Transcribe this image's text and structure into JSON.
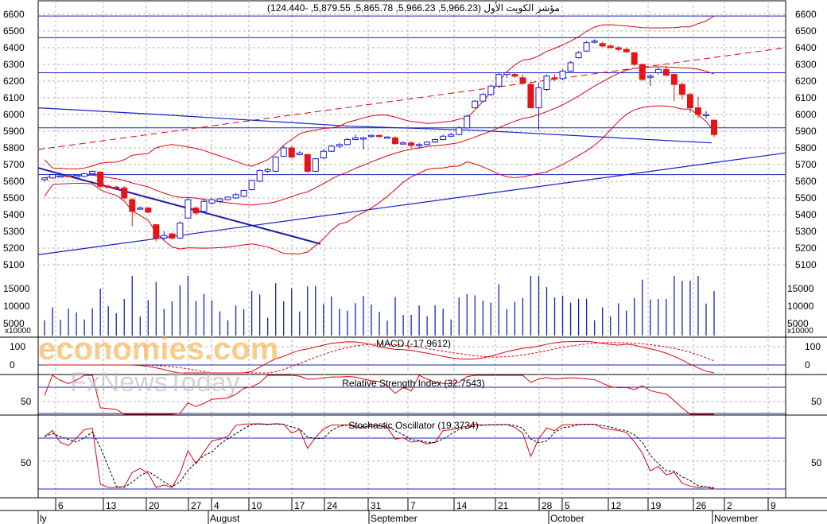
{
  "chart_data": [
    {
      "type": "candlestick",
      "title": "مؤشر الكويت الأول (5,966.23, 5,966.23, 5,865.78, 5,879.55, -124.440)",
      "ylim": [
        5100,
        6600
      ],
      "y_ticks": [
        "6600",
        "6500",
        "6400",
        "6300",
        "6200",
        "6100",
        "6000",
        "5900",
        "5800",
        "5700",
        "5600",
        "5500",
        "5400",
        "5300",
        "5200",
        "5100"
      ],
      "x_ticks": [
        "6",
        "13",
        "20",
        "27",
        "4",
        "10",
        "17",
        "24",
        "31",
        "7",
        "14",
        "21",
        "28",
        "5",
        "12",
        "19",
        "26",
        "2",
        "9"
      ],
      "months": [
        "ly",
        "August",
        "September",
        "October",
        "November"
      ],
      "horizontal_lines": [
        6590,
        6460,
        6250,
        5920,
        5640
      ],
      "candles": [
        {
          "o": 5610,
          "h": 5625,
          "l": 5600,
          "c": 5620
        },
        {
          "o": 5620,
          "h": 5645,
          "l": 5615,
          "c": 5640
        },
        {
          "o": 5630,
          "h": 5640,
          "l": 5625,
          "c": 5632
        },
        {
          "o": 5635,
          "h": 5640,
          "l": 5625,
          "c": 5630
        },
        {
          "o": 5625,
          "h": 5640,
          "l": 5615,
          "c": 5635
        },
        {
          "o": 5630,
          "h": 5650,
          "l": 5625,
          "c": 5645
        },
        {
          "o": 5645,
          "h": 5665,
          "l": 5640,
          "c": 5660
        },
        {
          "o": 5655,
          "h": 5660,
          "l": 5560,
          "c": 5570
        },
        {
          "o": 5570,
          "h": 5580,
          "l": 5560,
          "c": 5565
        },
        {
          "o": 5565,
          "h": 5575,
          "l": 5555,
          "c": 5560
        },
        {
          "o": 5560,
          "h": 5570,
          "l": 5490,
          "c": 5500
        },
        {
          "o": 5490,
          "h": 5500,
          "l": 5330,
          "c": 5420
        },
        {
          "o": 5440,
          "h": 5450,
          "l": 5430,
          "c": 5440
        },
        {
          "o": 5440,
          "h": 5445,
          "l": 5410,
          "c": 5415
        },
        {
          "o": 5340,
          "h": 5345,
          "l": 5240,
          "c": 5260
        },
        {
          "o": 5260,
          "h": 5300,
          "l": 5250,
          "c": 5275
        },
        {
          "o": 5285,
          "h": 5290,
          "l": 5250,
          "c": 5260
        },
        {
          "o": 5260,
          "h": 5360,
          "l": 5255,
          "c": 5350
        },
        {
          "o": 5380,
          "h": 5500,
          "l": 5375,
          "c": 5490
        },
        {
          "o": 5440,
          "h": 5450,
          "l": 5400,
          "c": 5410
        },
        {
          "o": 5420,
          "h": 5500,
          "l": 5410,
          "c": 5480
        },
        {
          "o": 5470,
          "h": 5500,
          "l": 5460,
          "c": 5490
        },
        {
          "o": 5480,
          "h": 5500,
          "l": 5470,
          "c": 5495
        },
        {
          "o": 5490,
          "h": 5510,
          "l": 5485,
          "c": 5505
        },
        {
          "o": 5500,
          "h": 5530,
          "l": 5495,
          "c": 5520
        },
        {
          "o": 5510,
          "h": 5550,
          "l": 5505,
          "c": 5545
        },
        {
          "o": 5550,
          "h": 5610,
          "l": 5545,
          "c": 5605
        },
        {
          "o": 5600,
          "h": 5670,
          "l": 5595,
          "c": 5665
        },
        {
          "o": 5660,
          "h": 5680,
          "l": 5650,
          "c": 5670
        },
        {
          "o": 5660,
          "h": 5750,
          "l": 5655,
          "c": 5745
        },
        {
          "o": 5750,
          "h": 5810,
          "l": 5745,
          "c": 5800
        },
        {
          "o": 5800,
          "h": 5810,
          "l": 5740,
          "c": 5745
        },
        {
          "o": 5760,
          "h": 5780,
          "l": 5755,
          "c": 5770
        },
        {
          "o": 5760,
          "h": 5765,
          "l": 5650,
          "c": 5660
        },
        {
          "o": 5660,
          "h": 5740,
          "l": 5655,
          "c": 5735
        },
        {
          "o": 5740,
          "h": 5790,
          "l": 5735,
          "c": 5780
        },
        {
          "o": 5780,
          "h": 5820,
          "l": 5775,
          "c": 5810
        },
        {
          "o": 5810,
          "h": 5830,
          "l": 5800,
          "c": 5820
        },
        {
          "o": 5820,
          "h": 5860,
          "l": 5815,
          "c": 5850
        },
        {
          "o": 5850,
          "h": 5880,
          "l": 5845,
          "c": 5860
        },
        {
          "o": 5860,
          "h": 5865,
          "l": 5790,
          "c": 5860
        },
        {
          "o": 5870,
          "h": 5880,
          "l": 5860,
          "c": 5875
        },
        {
          "o": 5875,
          "h": 5880,
          "l": 5860,
          "c": 5870
        },
        {
          "o": 5860,
          "h": 5870,
          "l": 5855,
          "c": 5865
        },
        {
          "o": 5860,
          "h": 5870,
          "l": 5820,
          "c": 5825
        },
        {
          "o": 5830,
          "h": 5840,
          "l": 5820,
          "c": 5830
        },
        {
          "o": 5830,
          "h": 5840,
          "l": 5800,
          "c": 5815
        },
        {
          "o": 5815,
          "h": 5830,
          "l": 5795,
          "c": 5820
        },
        {
          "o": 5820,
          "h": 5840,
          "l": 5815,
          "c": 5835
        },
        {
          "o": 5835,
          "h": 5855,
          "l": 5830,
          "c": 5850
        },
        {
          "o": 5850,
          "h": 5880,
          "l": 5845,
          "c": 5870
        },
        {
          "o": 5870,
          "h": 5890,
          "l": 5865,
          "c": 5880
        },
        {
          "o": 5880,
          "h": 5930,
          "l": 5875,
          "c": 5920
        },
        {
          "o": 5920,
          "h": 6000,
          "l": 5915,
          "c": 5990
        },
        {
          "o": 6040,
          "h": 6085,
          "l": 6035,
          "c": 6080
        },
        {
          "o": 6080,
          "h": 6130,
          "l": 6075,
          "c": 6120
        },
        {
          "o": 6120,
          "h": 6180,
          "l": 6110,
          "c": 6170
        },
        {
          "o": 6170,
          "h": 6250,
          "l": 6160,
          "c": 6240
        },
        {
          "o": 6240,
          "h": 6260,
          "l": 6220,
          "c": 6250
        },
        {
          "o": 6240,
          "h": 6250,
          "l": 6220,
          "c": 6230
        },
        {
          "o": 6220,
          "h": 6240,
          "l": 6180,
          "c": 6190
        },
        {
          "o": 6180,
          "h": 6190,
          "l": 6040,
          "c": 6040
        },
        {
          "o": 6040,
          "h": 6190,
          "l": 5910,
          "c": 6160
        },
        {
          "o": 6150,
          "h": 6240,
          "l": 6140,
          "c": 6230
        },
        {
          "o": 6220,
          "h": 6240,
          "l": 6200,
          "c": 6215
        },
        {
          "o": 6215,
          "h": 6270,
          "l": 6205,
          "c": 6260
        },
        {
          "o": 6260,
          "h": 6320,
          "l": 6255,
          "c": 6310
        },
        {
          "o": 6340,
          "h": 6380,
          "l": 6335,
          "c": 6370
        },
        {
          "o": 6380,
          "h": 6440,
          "l": 6375,
          "c": 6430
        },
        {
          "o": 6435,
          "h": 6450,
          "l": 6425,
          "c": 6440
        },
        {
          "o": 6425,
          "h": 6435,
          "l": 6405,
          "c": 6410
        },
        {
          "o": 6410,
          "h": 6420,
          "l": 6395,
          "c": 6400
        },
        {
          "o": 6400,
          "h": 6410,
          "l": 6380,
          "c": 6390
        },
        {
          "o": 6390,
          "h": 6400,
          "l": 6370,
          "c": 6375
        },
        {
          "o": 6370,
          "h": 6375,
          "l": 6290,
          "c": 6300
        },
        {
          "o": 6300,
          "h": 6305,
          "l": 6200,
          "c": 6210
        },
        {
          "o": 6230,
          "h": 6240,
          "l": 6170,
          "c": 6230
        },
        {
          "o": 6250,
          "h": 6280,
          "l": 6240,
          "c": 6270
        },
        {
          "o": 6270,
          "h": 6290,
          "l": 6230,
          "c": 6235
        },
        {
          "o": 6240,
          "h": 6245,
          "l": 6080,
          "c": 6180
        },
        {
          "o": 6180,
          "h": 6190,
          "l": 6090,
          "c": 6120
        },
        {
          "o": 6120,
          "h": 6130,
          "l": 6010,
          "c": 6040
        },
        {
          "o": 6040,
          "h": 6105,
          "l": 5980,
          "c": 6000
        },
        {
          "o": 6000,
          "h": 6020,
          "l": 5975,
          "c": 6000
        },
        {
          "o": 5966,
          "h": 5966,
          "l": 5866,
          "c": 5880
        }
      ],
      "volume": {
        "ticks": [
          "15000",
          "10000",
          "5000"
        ],
        "unit": "x10000"
      },
      "macd": {
        "title": "MACD (-17.9612)",
        "ticks": [
          "100",
          "0"
        ]
      },
      "rsi": {
        "title": "Relative Strength Index (32.7543)",
        "ticks": [
          "50"
        ]
      },
      "stochastic": {
        "title": "Stochastic Oscillator (19.3734)",
        "ticks": [
          "50"
        ]
      }
    }
  ],
  "watermark": {
    "line1": "economies.com",
    "line2": "FxNewsToday"
  },
  "colors": {
    "up": "#1a1ad8",
    "down": "#e51515",
    "band": "#e0000e",
    "line": "#1420c8",
    "grid": "#b5b5b5"
  }
}
